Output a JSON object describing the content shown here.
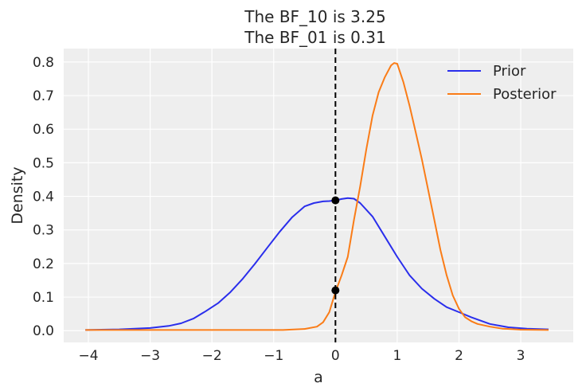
{
  "chart_data": {
    "type": "line",
    "title_lines": [
      "The BF_10 is 3.25",
      "The BF_01 is 0.31"
    ],
    "xlabel": "a",
    "ylabel": "Density",
    "xlim": [
      -4.4,
      3.85
    ],
    "ylim": [
      -0.035,
      0.84
    ],
    "xticks": [
      -4,
      -3,
      -2,
      -1,
      0,
      1,
      2,
      3
    ],
    "yticks": [
      0.0,
      0.1,
      0.2,
      0.3,
      0.4,
      0.5,
      0.6,
      0.7,
      0.8
    ],
    "ytick_labels": [
      "0.0",
      "0.1",
      "0.2",
      "0.3",
      "0.4",
      "0.5",
      "0.6",
      "0.7",
      "0.8"
    ],
    "grid": true,
    "legend_position": "top-right",
    "series": [
      {
        "name": "Prior",
        "color": "#2a2eec",
        "x": [
          -4.05,
          -3.5,
          -3.0,
          -2.7,
          -2.5,
          -2.3,
          -2.1,
          -1.9,
          -1.7,
          -1.5,
          -1.3,
          -1.1,
          -0.9,
          -0.7,
          -0.5,
          -0.35,
          -0.2,
          -0.1,
          0.0,
          0.1,
          0.2,
          0.3,
          0.4,
          0.6,
          0.8,
          1.0,
          1.2,
          1.4,
          1.6,
          1.8,
          2.0,
          2.2,
          2.5,
          2.8,
          3.1,
          3.45
        ],
        "y": [
          0.002,
          0.004,
          0.008,
          0.014,
          0.022,
          0.036,
          0.058,
          0.082,
          0.115,
          0.155,
          0.2,
          0.248,
          0.295,
          0.338,
          0.37,
          0.38,
          0.385,
          0.386,
          0.388,
          0.392,
          0.395,
          0.393,
          0.38,
          0.34,
          0.28,
          0.22,
          0.165,
          0.125,
          0.095,
          0.07,
          0.055,
          0.04,
          0.02,
          0.01,
          0.006,
          0.004
        ]
      },
      {
        "name": "Posterior",
        "color": "#fa7c17",
        "x": [
          -4.05,
          -2.0,
          -1.0,
          -0.85,
          -0.5,
          -0.3,
          -0.2,
          -0.1,
          0.0,
          0.1,
          0.2,
          0.3,
          0.4,
          0.5,
          0.6,
          0.7,
          0.8,
          0.9,
          0.95,
          1.0,
          1.1,
          1.2,
          1.3,
          1.4,
          1.5,
          1.6,
          1.7,
          1.8,
          1.9,
          2.0,
          2.1,
          2.2,
          2.3,
          2.5,
          2.7,
          3.0,
          3.45
        ],
        "y": [
          0.002,
          0.002,
          0.002,
          0.002,
          0.005,
          0.012,
          0.025,
          0.055,
          0.115,
          0.165,
          0.22,
          0.33,
          0.43,
          0.54,
          0.64,
          0.71,
          0.755,
          0.79,
          0.797,
          0.795,
          0.74,
          0.67,
          0.59,
          0.51,
          0.42,
          0.33,
          0.24,
          0.165,
          0.105,
          0.065,
          0.04,
          0.028,
          0.02,
          0.012,
          0.006,
          0.003,
          0.002
        ]
      }
    ],
    "reference_line": {
      "x": 0,
      "style": "dashed",
      "color": "#000000"
    },
    "points": [
      {
        "x": 0,
        "y": 0.388
      },
      {
        "x": 0,
        "y": 0.12
      }
    ]
  }
}
